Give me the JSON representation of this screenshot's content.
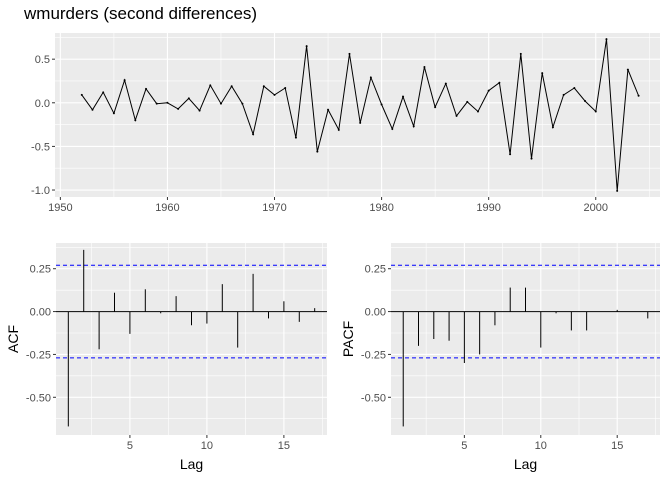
{
  "chart_data": [
    {
      "type": "line",
      "title": "wmurders (second differences)",
      "xlabel": "",
      "ylabel": "",
      "xlim": [
        1949.5,
        2006
      ],
      "ylim": [
        -1.08,
        0.8
      ],
      "x_ticks": [
        1950,
        1960,
        1970,
        1980,
        1990,
        2000
      ],
      "y_ticks": [
        -1.0,
        -0.5,
        0.0,
        0.5
      ],
      "y_tick_labels": [
        "-1.0",
        "-0.5",
        "0.0",
        "0.5"
      ],
      "grid": true,
      "x": [
        1952,
        1953,
        1954,
        1955,
        1956,
        1957,
        1958,
        1959,
        1960,
        1961,
        1962,
        1963,
        1964,
        1965,
        1966,
        1967,
        1968,
        1969,
        1970,
        1971,
        1972,
        1973,
        1974,
        1975,
        1976,
        1977,
        1978,
        1979,
        1980,
        1981,
        1982,
        1983,
        1984,
        1985,
        1986,
        1987,
        1988,
        1989,
        1990,
        1991,
        1992,
        1993,
        1994,
        1995,
        1996,
        1997,
        1998,
        1999,
        2000,
        2001,
        2002,
        2003,
        2004
      ],
      "y": [
        0.09,
        -0.08,
        0.12,
        -0.12,
        0.26,
        -0.2,
        0.16,
        -0.01,
        0.0,
        -0.07,
        0.05,
        -0.09,
        0.2,
        -0.01,
        0.19,
        -0.01,
        -0.36,
        0.19,
        0.09,
        0.17,
        -0.4,
        0.65,
        -0.56,
        -0.08,
        -0.31,
        0.56,
        -0.23,
        0.29,
        -0.02,
        -0.3,
        0.07,
        -0.27,
        0.41,
        -0.05,
        0.22,
        -0.15,
        0.01,
        -0.1,
        0.14,
        0.23,
        -0.59,
        0.56,
        -0.64,
        0.34,
        -0.28,
        0.09,
        0.17,
        0.02,
        -0.1,
        0.73,
        -1.01,
        0.38,
        0.08
      ]
    },
    {
      "type": "bar",
      "xlabel": "Lag",
      "ylabel": "ACF",
      "xlim": [
        0.2,
        17.8
      ],
      "ylim": [
        -0.72,
        0.4
      ],
      "x_ticks": [
        5,
        10,
        15
      ],
      "y_ticks": [
        -0.5,
        -0.25,
        0.0,
        0.25
      ],
      "y_tick_labels": [
        "-0.50",
        "-0.25",
        "0.00",
        "0.25"
      ],
      "confidence_bound": 0.27,
      "lags": [
        1,
        2,
        3,
        4,
        5,
        6,
        7,
        8,
        9,
        10,
        11,
        12,
        13,
        14,
        15,
        16,
        17
      ],
      "values": [
        -0.67,
        0.36,
        -0.22,
        0.11,
        -0.13,
        0.13,
        -0.01,
        0.09,
        -0.08,
        -0.07,
        0.16,
        -0.21,
        0.22,
        -0.04,
        0.06,
        -0.06,
        0.02
      ]
    },
    {
      "type": "bar",
      "xlabel": "Lag",
      "ylabel": "PACF",
      "xlim": [
        0.2,
        17.8
      ],
      "ylim": [
        -0.72,
        0.4
      ],
      "x_ticks": [
        5,
        10,
        15
      ],
      "y_ticks": [
        -0.5,
        -0.25,
        0.0,
        0.25
      ],
      "y_tick_labels": [
        "-0.50",
        "-0.25",
        "0.00",
        "0.25"
      ],
      "confidence_bound": 0.27,
      "lags": [
        1,
        2,
        3,
        4,
        5,
        6,
        7,
        8,
        9,
        10,
        11,
        12,
        13,
        14,
        15,
        16,
        17
      ],
      "values": [
        -0.67,
        -0.2,
        -0.16,
        -0.17,
        -0.3,
        -0.25,
        -0.08,
        0.14,
        0.14,
        -0.21,
        -0.01,
        -0.11,
        -0.11,
        0.0,
        0.01,
        0.0,
        -0.04
      ]
    }
  ],
  "colors": {
    "panel_bg": "#ebebeb",
    "grid_major": "#ffffff",
    "line": "#000000",
    "bound": "#0000ff"
  }
}
